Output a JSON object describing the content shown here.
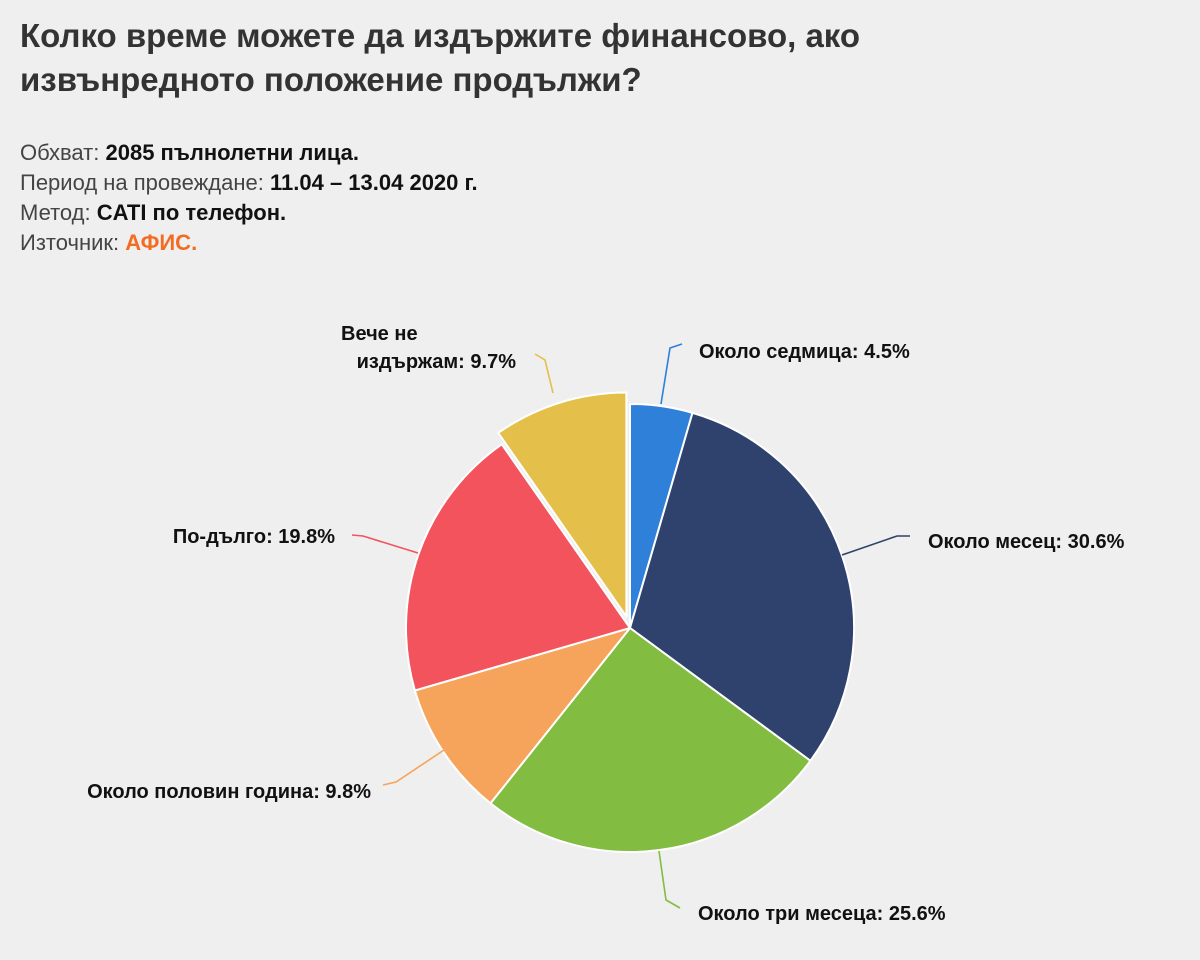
{
  "title": "Колко време можете да издържите финансово, ако извънредното положение продължи?",
  "meta": {
    "scope_label": "Обхват:",
    "scope_value": "2085 пълнолетни лица.",
    "period_label": "Период на провеждане:",
    "period_value": "11.04 – 13.04 2020 г.",
    "method_label": "Метод:",
    "method_value": "CATI по телефон.",
    "source_label": "Източник:",
    "source_value": "АФИС."
  },
  "colors": {
    "background": "#efefef",
    "source_accent": "#f36c21"
  },
  "chart_data": {
    "type": "pie",
    "title": "",
    "unit": "%",
    "slices": [
      {
        "label": "Около седмица",
        "value": 4.5,
        "display": "Около седмица: 4.5%",
        "color": "#2f80d8"
      },
      {
        "label": "Около месец",
        "value": 30.6,
        "display": "Около месец: 30.6%",
        "color": "#2f416d"
      },
      {
        "label": "Около три месеца",
        "value": 25.6,
        "display": "Около три месеца: 25.6%",
        "color": "#82bc41"
      },
      {
        "label": "Около половин година",
        "value": 9.8,
        "display": "Около половин година: 9.8%",
        "color": "#f6a45b"
      },
      {
        "label": "По-дълго",
        "value": 19.8,
        "display": "По-дълго: 19.8%",
        "color": "#f3535d"
      },
      {
        "label": "Вече не издържам",
        "value": 9.7,
        "display": "Вече не издържам: 9.7%",
        "display_lines": [
          "Вече не",
          "издържам: 9.7%"
        ],
        "color": "#e4bf4a",
        "exploded": true
      }
    ]
  }
}
